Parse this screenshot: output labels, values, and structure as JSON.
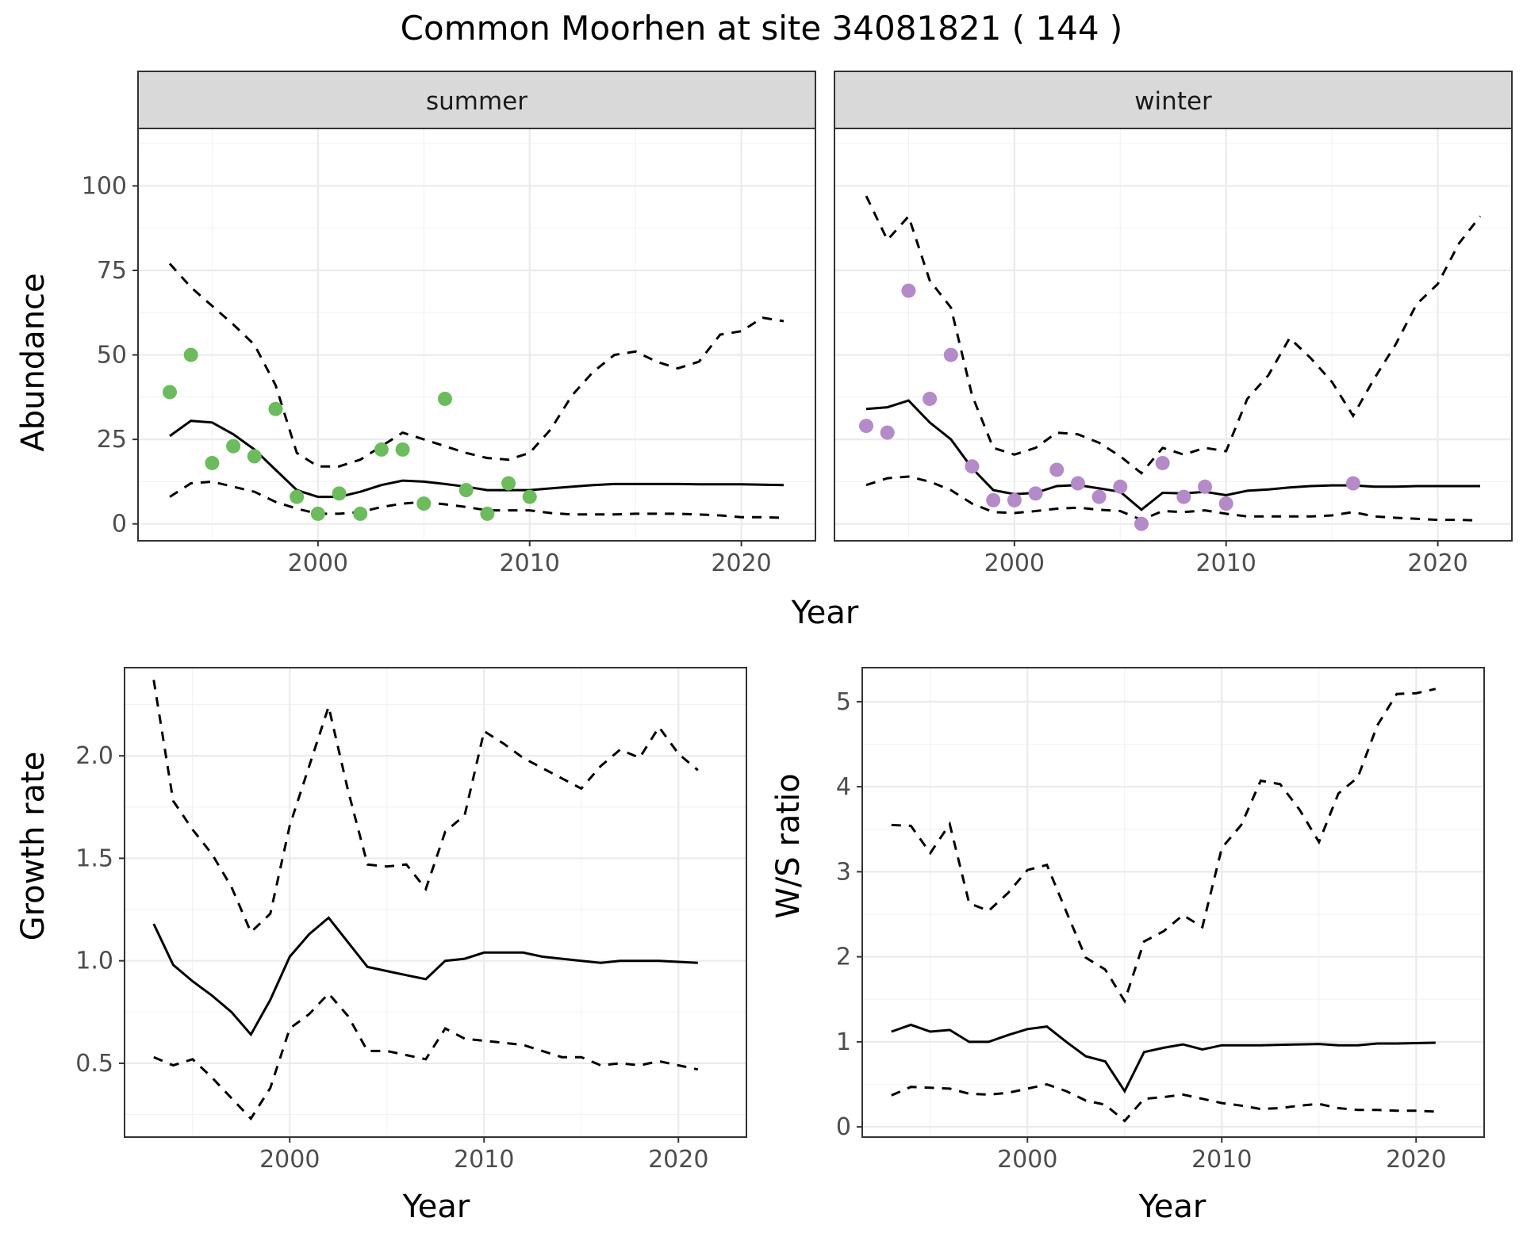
{
  "figure": {
    "title": "Common Moorhen at site 34081821 ( 144 )"
  },
  "chart_data": [
    {
      "type": "line",
      "id": "abundance",
      "xlabel": "Year",
      "ylabel": "Abundance",
      "xlim": [
        1991.5,
        2023.5
      ],
      "ylim": [
        -5,
        117
      ],
      "xticks": [
        2000,
        2010,
        2020
      ],
      "yticks": [
        0,
        25,
        50,
        75,
        100
      ],
      "grid": true,
      "facets": [
        {
          "strip": "summer",
          "point_color": "#6abd5a",
          "mean": {
            "x": [
              1993,
              1994,
              1995,
              1996,
              1997,
              1998,
              1999,
              2000,
              2001,
              2002,
              2003,
              2004,
              2005,
              2006,
              2007,
              2008,
              2009,
              2010,
              2011,
              2012,
              2013,
              2014,
              2015,
              2016,
              2017,
              2018,
              2019,
              2020,
              2021,
              2022
            ],
            "y": [
              26,
              30.5,
              30,
              26.5,
              22,
              16,
              10,
              8,
              8,
              9.5,
              11.5,
              12.8,
              12.5,
              11.8,
              11,
              10,
              10,
              10,
              10.5,
              11,
              11.5,
              11.8,
              11.8,
              11.8,
              11.8,
              11.7,
              11.7,
              11.7,
              11.6,
              11.5
            ]
          },
          "upper": {
            "x": [
              1993,
              1994,
              1995,
              1996,
              1997,
              1998,
              1999,
              2000,
              2001,
              2002,
              2003,
              2004,
              2005,
              2006,
              2007,
              2008,
              2009,
              2010,
              2011,
              2012,
              2013,
              2014,
              2015,
              2016,
              2017,
              2018,
              2019,
              2020,
              2021,
              2022
            ],
            "y": [
              77,
              70,
              64.5,
              59,
              53,
              41,
              21,
              17,
              17,
              19,
              23,
              27,
              25,
              23,
              21,
              19.5,
              19,
              21,
              28,
              38,
              45,
              50,
              51,
              48,
              46,
              48,
              56,
              57,
              61,
              60
            ]
          },
          "lower": {
            "x": [
              1993,
              1994,
              1995,
              1996,
              1997,
              1998,
              1999,
              2000,
              2001,
              2002,
              2003,
              2004,
              2005,
              2006,
              2007,
              2008,
              2009,
              2010,
              2011,
              2012,
              2013,
              2014,
              2015,
              2016,
              2017,
              2018,
              2019,
              2020,
              2021,
              2022
            ],
            "y": [
              8,
              12,
              12.5,
              11,
              9.5,
              6.5,
              4.5,
              3,
              3,
              3.5,
              5,
              6,
              6.5,
              5.8,
              5,
              4,
              4,
              4,
              3.2,
              2.8,
              2.8,
              2.8,
              3,
              3,
              3,
              2.8,
              2.5,
              2,
              2,
              1.8
            ]
          },
          "points": {
            "x": [
              1993,
              1994,
              1995,
              1996,
              1997,
              1998,
              1999,
              2000,
              2001,
              2002,
              2003,
              2004,
              2005,
              2006,
              2007,
              2008,
              2009,
              2010
            ],
            "y": [
              39,
              50,
              18,
              23,
              20,
              34,
              8,
              3,
              9,
              3,
              22,
              22,
              6,
              37,
              10,
              3,
              12,
              8
            ]
          }
        },
        {
          "strip": "winter",
          "point_color": "#b48ac8",
          "mean": {
            "x": [
              1993,
              1994,
              1995,
              1996,
              1997,
              1998,
              1999,
              2000,
              2001,
              2002,
              2003,
              2004,
              2005,
              2006,
              2007,
              2008,
              2009,
              2010,
              2011,
              2012,
              2013,
              2014,
              2015,
              2016,
              2017,
              2018,
              2019,
              2020,
              2021,
              2022
            ],
            "y": [
              34,
              34.5,
              36.5,
              30,
              25,
              16.5,
              10,
              8.8,
              9.2,
              11.2,
              11.5,
              10.5,
              9.5,
              4.2,
              9.2,
              9,
              9.5,
              8.5,
              9.8,
              10.2,
              10.8,
              11.2,
              11.4,
              11.4,
              11,
              11,
              11.2,
              11.2,
              11.2,
              11.2
            ]
          },
          "upper": {
            "x": [
              1993,
              1994,
              1995,
              1996,
              1997,
              1998,
              1999,
              2000,
              2001,
              2002,
              2003,
              2004,
              2005,
              2006,
              2007,
              2008,
              2009,
              2010,
              2011,
              2012,
              2013,
              2014,
              2015,
              2016,
              2017,
              2018,
              2019,
              2020,
              2021,
              2022
            ],
            "y": [
              97,
              84,
              91,
              72,
              64,
              38,
              22.5,
              20.5,
              22.5,
              27,
              26.5,
              24,
              20,
              15,
              22.5,
              20.5,
              22.5,
              21.5,
              37,
              44,
              55,
              49,
              42,
              32,
              43,
              53,
              65,
              71,
              83,
              91
            ]
          },
          "lower": {
            "x": [
              1993,
              1994,
              1995,
              1996,
              1997,
              1998,
              1999,
              2000,
              2001,
              2002,
              2003,
              2004,
              2005,
              2006,
              2007,
              2008,
              2009,
              2010,
              2011,
              2012,
              2013,
              2014,
              2015,
              2016,
              2017,
              2018,
              2019,
              2020,
              2021,
              2022
            ],
            "y": [
              11.5,
              13.5,
              14,
              12.5,
              10,
              6,
              3.5,
              3.2,
              3.8,
              4.5,
              4.8,
              4.2,
              3.8,
              1.2,
              3.8,
              3.5,
              4,
              3,
              2.2,
              2.2,
              2.2,
              2.2,
              2.5,
              3.5,
              2.2,
              1.8,
              1.5,
              1.2,
              1.2,
              1
            ]
          },
          "points": {
            "x": [
              1993,
              1994,
              1995,
              1996,
              1997,
              1998,
              1999,
              2000,
              2001,
              2002,
              2003,
              2004,
              2005,
              2006,
              2007,
              2008,
              2009,
              2010,
              2016
            ],
            "y": [
              29,
              27,
              69,
              37,
              50,
              17,
              7,
              7,
              9,
              16,
              12,
              8,
              11,
              0,
              18,
              8,
              11,
              6,
              12
            ]
          }
        }
      ]
    },
    {
      "type": "line",
      "id": "growth",
      "xlabel": "Year",
      "ylabel": "Growth rate",
      "xlim": [
        1991.5,
        2023.5
      ],
      "ylim": [
        0.14,
        2.43
      ],
      "xticks": [
        2000,
        2010,
        2020
      ],
      "yticks": [
        0.5,
        1.0,
        1.5,
        2.0
      ],
      "ytick_labels": [
        "0.5",
        "1.0",
        "1.5",
        "2.0"
      ],
      "grid": true,
      "mean": {
        "x": [
          1993,
          1994,
          1995,
          1996,
          1997,
          1998,
          1999,
          2000,
          2001,
          2002,
          2003,
          2004,
          2005,
          2006,
          2007,
          2008,
          2009,
          2010,
          2011,
          2012,
          2013,
          2014,
          2015,
          2016,
          2017,
          2018,
          2019,
          2020,
          2021
        ],
        "y": [
          1.18,
          0.98,
          0.9,
          0.83,
          0.75,
          0.64,
          0.81,
          1.02,
          1.13,
          1.21,
          1.09,
          0.97,
          0.95,
          0.93,
          0.91,
          1.0,
          1.01,
          1.04,
          1.04,
          1.04,
          1.02,
          1.01,
          1.0,
          0.99,
          1.0,
          1.0,
          1.0,
          0.995,
          0.99
        ]
      },
      "upper": {
        "x": [
          1993,
          1994,
          1995,
          1996,
          1997,
          1998,
          1999,
          2000,
          2001,
          2002,
          2003,
          2004,
          2005,
          2006,
          2007,
          2008,
          2009,
          2010,
          2011,
          2012,
          2013,
          2014,
          2015,
          2016,
          2017,
          2018,
          2019,
          2020,
          2021
        ],
        "y": [
          2.37,
          1.78,
          1.64,
          1.52,
          1.36,
          1.14,
          1.23,
          1.66,
          1.95,
          2.24,
          1.83,
          1.47,
          1.46,
          1.47,
          1.35,
          1.63,
          1.71,
          2.12,
          2.06,
          1.99,
          1.94,
          1.89,
          1.84,
          1.95,
          2.03,
          1.99,
          2.14,
          2.01,
          1.93
        ]
      },
      "lower": {
        "x": [
          1993,
          1994,
          1995,
          1996,
          1997,
          1998,
          1999,
          2000,
          2001,
          2002,
          2003,
          2004,
          2005,
          2006,
          2007,
          2008,
          2009,
          2010,
          2011,
          2012,
          2013,
          2014,
          2015,
          2016,
          2017,
          2018,
          2019,
          2020,
          2021
        ],
        "y": [
          0.53,
          0.49,
          0.52,
          0.43,
          0.33,
          0.23,
          0.38,
          0.67,
          0.74,
          0.84,
          0.73,
          0.56,
          0.56,
          0.54,
          0.52,
          0.67,
          0.62,
          0.61,
          0.6,
          0.59,
          0.56,
          0.53,
          0.53,
          0.49,
          0.5,
          0.49,
          0.51,
          0.49,
          0.47
        ]
      }
    },
    {
      "type": "line",
      "id": "ratio",
      "xlabel": "Year",
      "ylabel": "W/S ratio",
      "xlim": [
        1991.5,
        2023.5
      ],
      "ylim": [
        -0.12,
        5.4
      ],
      "xticks": [
        2000,
        2010,
        2020
      ],
      "yticks": [
        0,
        1,
        2,
        3,
        4,
        5
      ],
      "grid": true,
      "mean": {
        "x": [
          1993,
          1994,
          1995,
          1996,
          1997,
          1998,
          1999,
          2000,
          2001,
          2002,
          2003,
          2004,
          2005,
          2006,
          2007,
          2008,
          2009,
          2010,
          2011,
          2012,
          2013,
          2014,
          2015,
          2016,
          2017,
          2018,
          2019,
          2020,
          2021
        ],
        "y": [
          1.12,
          1.2,
          1.12,
          1.14,
          1.0,
          1.0,
          1.08,
          1.15,
          1.18,
          1.0,
          0.83,
          0.77,
          0.42,
          0.88,
          0.93,
          0.97,
          0.91,
          0.96,
          0.96,
          0.96,
          0.965,
          0.97,
          0.975,
          0.96,
          0.96,
          0.98,
          0.98,
          0.985,
          0.99
        ]
      },
      "upper": {
        "x": [
          1993,
          1994,
          1995,
          1996,
          1997,
          1998,
          1999,
          2000,
          2001,
          2002,
          2003,
          2004,
          2005,
          2006,
          2007,
          2008,
          2009,
          2010,
          2011,
          2012,
          2013,
          2014,
          2015,
          2016,
          2017,
          2018,
          2019,
          2020,
          2021
        ],
        "y": [
          3.55,
          3.54,
          3.22,
          3.56,
          2.63,
          2.54,
          2.75,
          3.02,
          3.08,
          2.53,
          1.99,
          1.85,
          1.48,
          2.18,
          2.3,
          2.49,
          2.35,
          3.28,
          3.55,
          4.07,
          4.03,
          3.73,
          3.35,
          3.92,
          4.11,
          4.72,
          5.09,
          5.1,
          5.15
        ]
      },
      "lower": {
        "x": [
          1993,
          1994,
          1995,
          1996,
          1997,
          1998,
          1999,
          2000,
          2001,
          2002,
          2003,
          2004,
          2005,
          2006,
          2007,
          2008,
          2009,
          2010,
          2011,
          2012,
          2013,
          2014,
          2015,
          2016,
          2017,
          2018,
          2019,
          2020,
          2021
        ],
        "y": [
          0.37,
          0.47,
          0.46,
          0.45,
          0.39,
          0.38,
          0.4,
          0.45,
          0.5,
          0.42,
          0.31,
          0.26,
          0.07,
          0.33,
          0.35,
          0.38,
          0.33,
          0.28,
          0.25,
          0.21,
          0.22,
          0.25,
          0.27,
          0.22,
          0.2,
          0.2,
          0.19,
          0.19,
          0.18
        ]
      }
    }
  ]
}
